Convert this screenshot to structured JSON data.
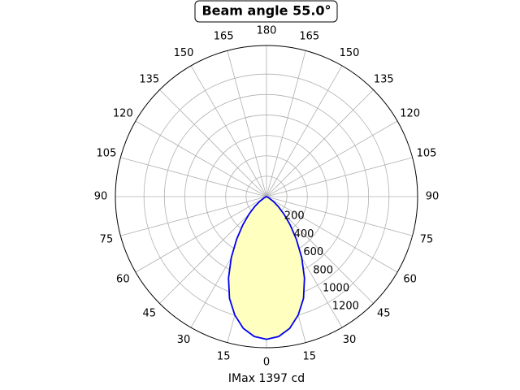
{
  "chart_data": {
    "type": "polar",
    "title": "Beam angle 55.0°",
    "xlabel": "IMax 1397 cd",
    "x": [
      -70,
      -65,
      -60,
      -55,
      -50,
      -45,
      -40,
      -35,
      -30,
      -25,
      -20,
      -15,
      -10,
      -5,
      0,
      5,
      10,
      15,
      20,
      25,
      30,
      35,
      40,
      45,
      50,
      55,
      60,
      65,
      70
    ],
    "series": [
      {
        "color": "#0000ee",
        "fill": "#ffffc0",
        "values": [
          0,
          5,
          30,
          80,
          150,
          240,
          360,
          510,
          690,
          880,
          1060,
          1200,
          1310,
          1375,
          1397,
          1375,
          1310,
          1200,
          1060,
          880,
          690,
          510,
          360,
          240,
          150,
          80,
          30,
          5,
          0
        ]
      }
    ],
    "rlim": [
      0,
      1480
    ],
    "rticks": [
      200,
      400,
      600,
      800,
      1000,
      1200
    ],
    "thetaticks": [
      0,
      15,
      30,
      45,
      60,
      75,
      90,
      105,
      120,
      135,
      150,
      165,
      180,
      {
        "value": 195,
        "label": "165"
      },
      {
        "value": 210,
        "label": "150"
      },
      {
        "value": 225,
        "label": "135"
      },
      {
        "value": 240,
        "label": "120"
      },
      {
        "value": 255,
        "label": "105"
      },
      {
        "value": 270,
        "label": "90"
      },
      {
        "value": 285,
        "label": "75"
      },
      {
        "value": 300,
        "label": "60"
      },
      {
        "value": 315,
        "label": "45"
      },
      {
        "value": 330,
        "label": "30"
      },
      {
        "value": 345,
        "label": "15"
      }
    ],
    "grid": true
  }
}
